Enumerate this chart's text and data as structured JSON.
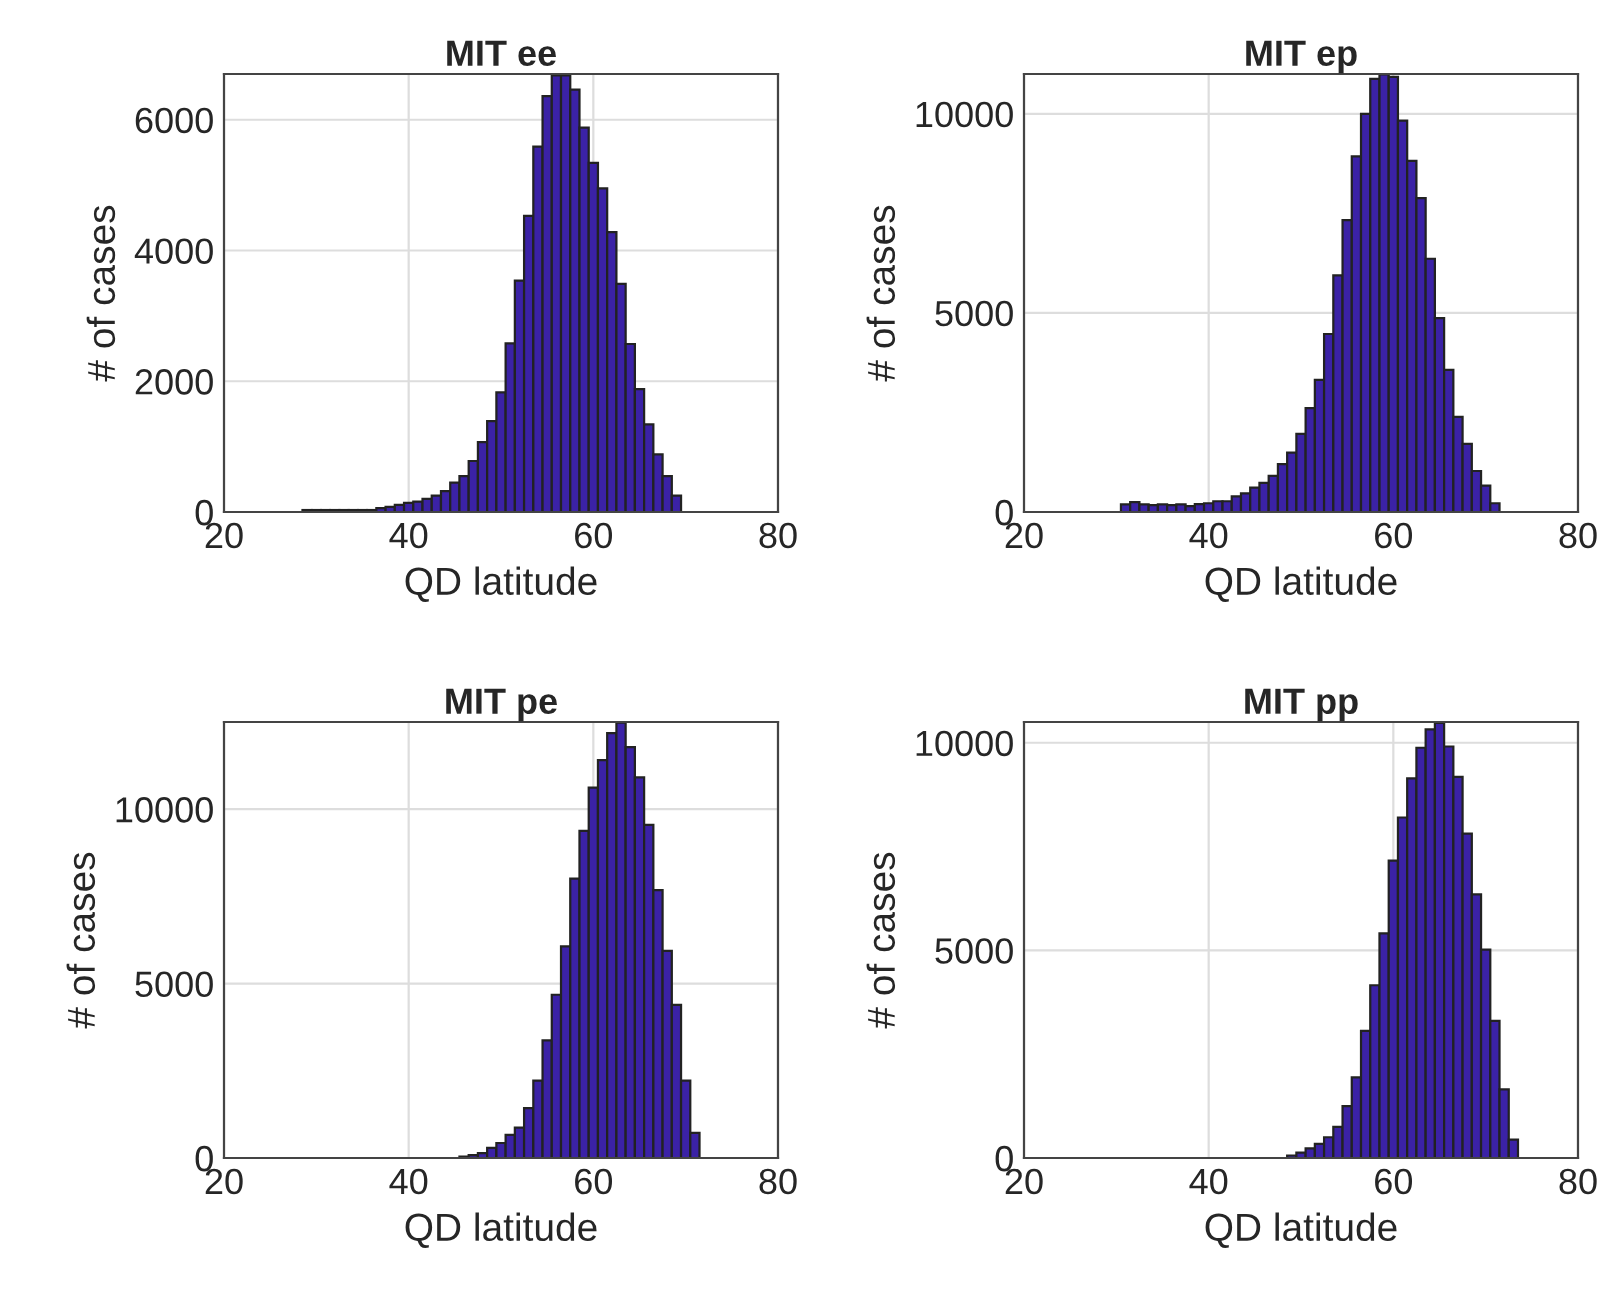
{
  "chart_data": [
    {
      "type": "histogram",
      "title": "MIT ee",
      "xlabel": "QD latitude",
      "ylabel": "# of cases",
      "color": "#3b22a6",
      "grid": true,
      "bins": [
        28.5,
        29.5,
        30.5,
        31.5,
        32.5,
        33.5,
        34.5,
        35.5,
        36.5,
        37.5,
        38.5,
        39.5,
        40.5,
        41.5,
        42.5,
        43.5,
        44.5,
        45.5,
        46.5,
        47.5,
        48.5,
        49.5,
        50.5,
        51.5,
        52.5,
        53.5,
        54.5,
        55.5,
        56.5,
        57.5,
        58.5,
        59.5,
        60.5,
        61.5,
        62.5,
        63.5,
        64.5,
        65.5,
        66.5,
        67.5,
        68.5,
        69.5
      ],
      "values": [
        30,
        30,
        30,
        30,
        30,
        30,
        30,
        30,
        60,
        80,
        110,
        140,
        160,
        200,
        250,
        320,
        450,
        550,
        780,
        1070,
        1390,
        1830,
        2580,
        3540,
        4530,
        5590,
        6360,
        6680,
        6680,
        6460,
        5880,
        5340,
        4950,
        4280,
        3490,
        2570,
        1880,
        1340,
        880,
        550,
        250
      ],
      "xlim": [
        20,
        80
      ],
      "xticks": [
        20,
        40,
        60,
        80
      ],
      "ylim": [
        0,
        6700
      ],
      "yticks": [
        0,
        2000,
        4000,
        6000
      ]
    },
    {
      "type": "histogram",
      "title": "MIT ep",
      "xlabel": "QD latitude",
      "ylabel": "# of cases",
      "color": "#3b22a6",
      "grid": true,
      "bins": [
        30.5,
        31.5,
        32.5,
        33.5,
        34.5,
        35.5,
        36.5,
        37.5,
        38.5,
        39.5,
        40.5,
        41.5,
        42.5,
        43.5,
        44.5,
        45.5,
        46.5,
        47.5,
        48.5,
        49.5,
        50.5,
        51.5,
        52.5,
        53.5,
        54.5,
        55.5,
        56.5,
        57.5,
        58.5,
        59.5,
        60.5,
        61.5,
        62.5,
        63.5,
        64.5,
        65.5,
        66.5,
        67.5,
        68.5,
        69.5,
        70.5,
        71.5
      ],
      "values": [
        190,
        250,
        190,
        170,
        190,
        170,
        190,
        150,
        200,
        220,
        270,
        270,
        390,
        470,
        610,
        730,
        910,
        1200,
        1490,
        1960,
        2610,
        3320,
        4470,
        5940,
        7330,
        8930,
        10000,
        10880,
        10990,
        10930,
        9830,
        8820,
        7880,
        6360,
        4870,
        3570,
        2390,
        1710,
        1030,
        660,
        220
      ],
      "xlim": [
        20,
        80
      ],
      "xticks": [
        20,
        40,
        60,
        80
      ],
      "ylim": [
        0,
        11000
      ],
      "yticks": [
        0,
        5000,
        10000
      ]
    },
    {
      "type": "histogram",
      "title": "MIT pe",
      "xlabel": "QD latitude",
      "ylabel": "# of cases",
      "color": "#3b22a6",
      "grid": true,
      "bins": [
        45.5,
        46.5,
        47.5,
        48.5,
        49.5,
        50.5,
        51.5,
        52.5,
        53.5,
        54.5,
        55.5,
        56.5,
        57.5,
        58.5,
        59.5,
        60.5,
        61.5,
        62.5,
        63.5,
        64.5,
        65.5,
        66.5,
        67.5,
        68.5,
        69.5,
        70.5,
        71.5
      ],
      "values": [
        40,
        80,
        140,
        290,
        430,
        660,
        870,
        1430,
        2220,
        3370,
        4680,
        6070,
        8010,
        9380,
        10620,
        11410,
        12180,
        12480,
        11780,
        10910,
        9550,
        7680,
        5940,
        4390,
        2220,
        720
      ],
      "xlim": [
        20,
        80
      ],
      "xticks": [
        20,
        40,
        60,
        80
      ],
      "ylim": [
        0,
        12500
      ],
      "yticks": [
        0,
        5000,
        10000
      ]
    },
    {
      "type": "histogram",
      "title": "MIT pp",
      "xlabel": "QD latitude",
      "ylabel": "# of cases",
      "color": "#3b22a6",
      "grid": true,
      "bins": [
        48.5,
        49.5,
        50.5,
        51.5,
        52.5,
        53.5,
        54.5,
        55.5,
        56.5,
        57.5,
        58.5,
        59.5,
        60.5,
        61.5,
        62.5,
        63.5,
        64.5,
        65.5,
        66.5,
        67.5,
        68.5,
        69.5,
        70.5,
        71.5,
        72.5,
        73.5
      ],
      "values": [
        60,
        130,
        230,
        340,
        500,
        750,
        1250,
        1940,
        3060,
        4160,
        5410,
        7160,
        8200,
        9140,
        9880,
        10320,
        10480,
        9910,
        9180,
        7810,
        6350,
        5020,
        3300,
        1650,
        440
      ],
      "xlim": [
        20,
        80
      ],
      "xticks": [
        20,
        40,
        60,
        80
      ],
      "ylim": [
        0,
        10500
      ],
      "yticks": [
        0,
        5000,
        10000
      ]
    }
  ]
}
